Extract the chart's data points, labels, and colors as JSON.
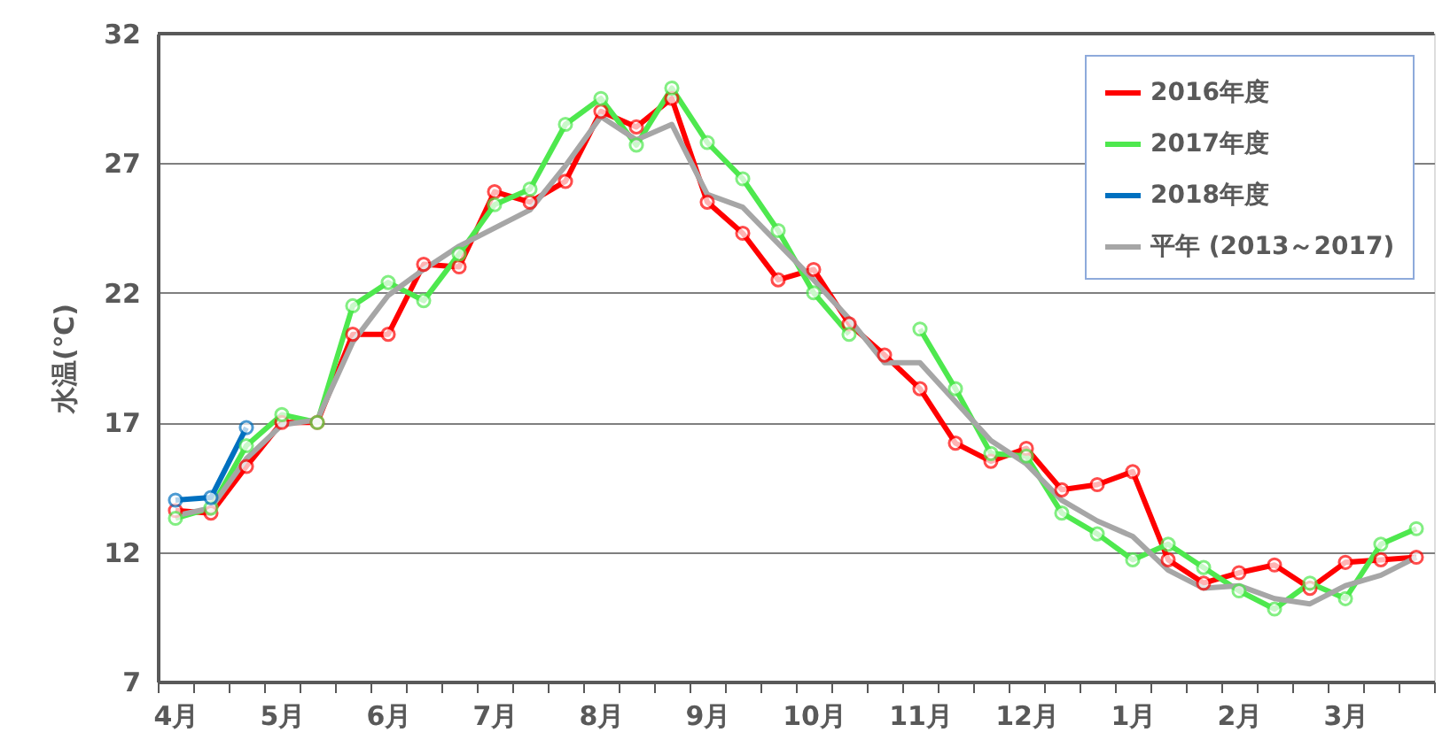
{
  "chart_data": {
    "type": "line",
    "ylabel": "水温(℃)",
    "categories": [
      "4月",
      null,
      null,
      "5月",
      null,
      null,
      "6月",
      null,
      null,
      "7月",
      null,
      null,
      "8月",
      null,
      null,
      "9月",
      null,
      null,
      "10月",
      null,
      null,
      "11月",
      null,
      null,
      "12月",
      null,
      null,
      "1月",
      null,
      null,
      "2月",
      null,
      null,
      "3月",
      null,
      null
    ],
    "ylim": [
      7,
      32
    ],
    "yticks": [
      7,
      12,
      17,
      22,
      27,
      32
    ],
    "grid": "y",
    "legend": "top right",
    "line_style": "solid",
    "series": [
      {
        "name": "2016年度",
        "color": "#ff0000",
        "marker": "circle",
        "values": [
          13.6,
          13.5,
          15.3,
          17.0,
          17.0,
          20.4,
          20.4,
          23.1,
          23.0,
          25.9,
          25.5,
          26.3,
          29.0,
          28.4,
          29.5,
          25.5,
          24.3,
          22.5,
          22.9,
          20.8,
          19.6,
          18.3,
          16.2,
          15.5,
          16.0,
          14.4,
          14.6,
          15.1,
          11.7,
          10.8,
          11.2,
          11.5,
          10.6,
          11.6,
          11.7,
          11.8
        ]
      },
      {
        "name": "2017年度",
        "color": "#4ee84e",
        "marker": "circle",
        "values": [
          13.3,
          13.7,
          16.1,
          17.3,
          17.0,
          21.5,
          22.4,
          21.7,
          23.5,
          25.4,
          26.0,
          28.5,
          29.5,
          27.7,
          29.9,
          27.8,
          26.4,
          24.4,
          22.0,
          20.4,
          null,
          20.6,
          18.3,
          15.8,
          15.7,
          13.5,
          12.7,
          11.7,
          12.3,
          11.4,
          10.5,
          9.8,
          10.8,
          10.2,
          12.3,
          12.9
        ]
      },
      {
        "name": "2018年度",
        "color": "#0070c0",
        "marker": "circle",
        "values": [
          14.0,
          14.1,
          16.8,
          null,
          null,
          null,
          null,
          null,
          null,
          null,
          null,
          null,
          null,
          null,
          null,
          null,
          null,
          null,
          null,
          null,
          null,
          null,
          null,
          null,
          null,
          null,
          null,
          null,
          null,
          null,
          null,
          null,
          null,
          null,
          null,
          null
        ]
      },
      {
        "name": "平年 (2013～2017)",
        "color": "#a6a6a6",
        "marker": "none",
        "values": [
          13.4,
          13.7,
          15.6,
          16.9,
          17.1,
          20.1,
          21.9,
          22.9,
          23.8,
          24.5,
          25.2,
          26.9,
          28.8,
          27.9,
          28.5,
          25.8,
          25.3,
          23.9,
          22.5,
          21.0,
          19.3,
          19.3,
          17.8,
          16.3,
          15.4,
          14.0,
          13.2,
          12.6,
          11.3,
          10.6,
          10.7,
          10.2,
          10.0,
          10.7,
          11.1,
          11.8
        ]
      }
    ]
  }
}
